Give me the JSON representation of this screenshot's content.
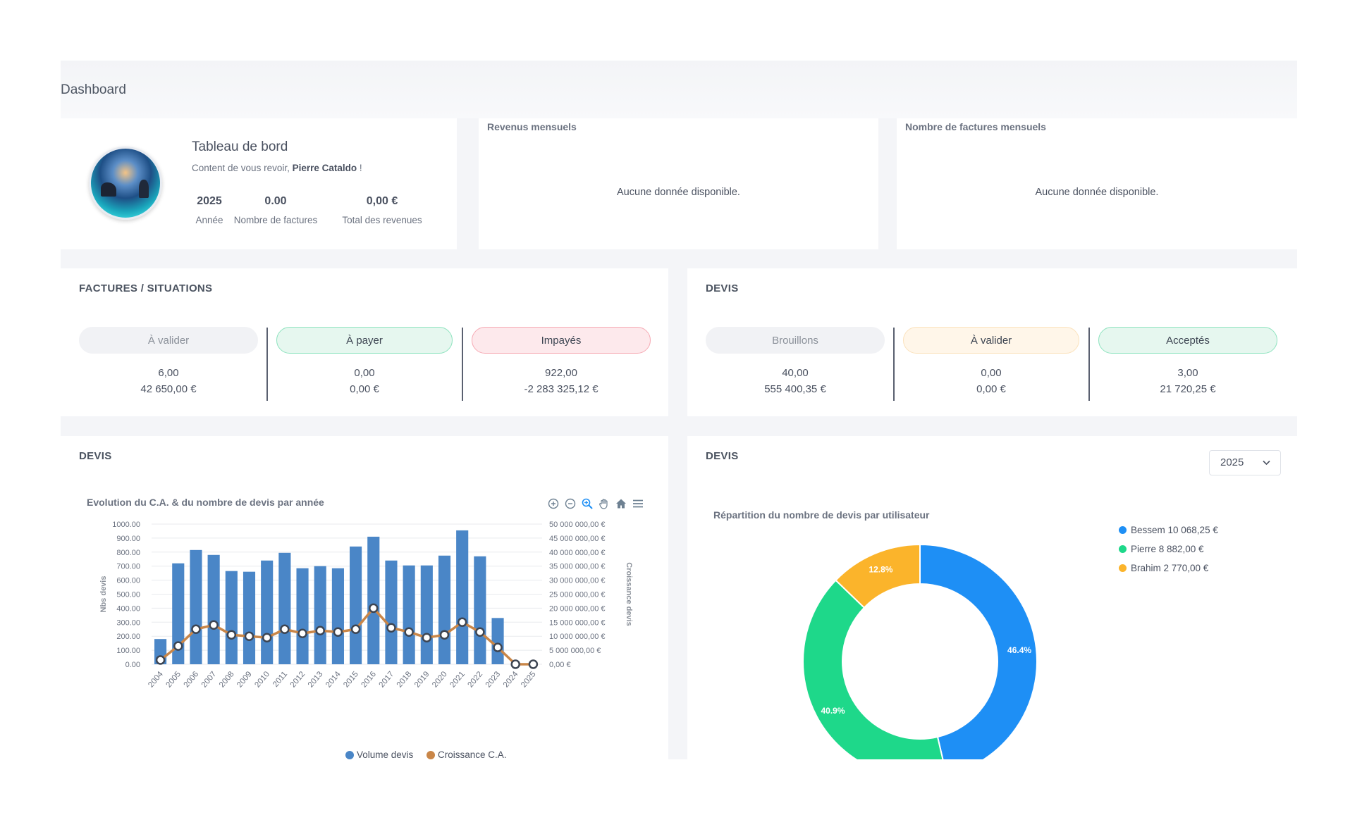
{
  "page": {
    "title": "Dashboard"
  },
  "profile": {
    "title": "Tableau de bord",
    "greeting_prefix": "Content de vous revoir,",
    "user_name": "Pierre Cataldo",
    "greeting_suffix": "!",
    "stats": [
      {
        "value": "2025",
        "label": "Année"
      },
      {
        "value": "0.00",
        "label": "Nombre de factures"
      },
      {
        "value": "0,00 €",
        "label": "Total des revenues"
      }
    ]
  },
  "revenue_card": {
    "title": "Revenus mensuels",
    "empty": "Aucune donnée disponible."
  },
  "invoices_count_card": {
    "title": "Nombre de factures mensuels",
    "empty": "Aucune donnée disponible."
  },
  "factures": {
    "title": "FACTURES / SITUATIONS",
    "columns": [
      {
        "label": "À valider",
        "count": "6,00",
        "amount": "42 650,00 €"
      },
      {
        "label": "À payer",
        "count": "0,00",
        "amount": "0,00 €"
      },
      {
        "label": "Impayés",
        "count": "922,00",
        "amount": "-2 283 325,12 €"
      }
    ]
  },
  "devis_status": {
    "title": "DEVIS",
    "columns": [
      {
        "label": "Brouillons",
        "count": "40,00",
        "amount": "555 400,35 €"
      },
      {
        "label": "À valider",
        "count": "0,00",
        "amount": "0,00 €"
      },
      {
        "label": "Acceptés",
        "count": "3,00",
        "amount": "21 720,25 €"
      }
    ]
  },
  "devis_chart_card": {
    "title": "DEVIS",
    "toolbar": [
      "zoom-in-icon",
      "zoom-out-icon",
      "selection-zoom-icon",
      "pan-hand-icon",
      "reset-home-icon",
      "menu-icon"
    ]
  },
  "devis_donut_card": {
    "title": "DEVIS",
    "year": "2025",
    "legend": [
      {
        "label": "Bessem 10 068,25 €",
        "color": "#1e8ff5"
      },
      {
        "label": "Pierre 8 882,00 €",
        "color": "#1ed88a"
      },
      {
        "label": "Brahim 2 770,00 €",
        "color": "#fbb42b"
      }
    ]
  },
  "chart_data": [
    {
      "type": "bar",
      "title": "Evolution du C.A. & du nombre de devis par année",
      "categories": [
        "2004",
        "2005",
        "2006",
        "2007",
        "2008",
        "2009",
        "2010",
        "2011",
        "2012",
        "2013",
        "2014",
        "2015",
        "2016",
        "2017",
        "2018",
        "2019",
        "2020",
        "2021",
        "2022",
        "2023",
        "2024",
        "2025"
      ],
      "series": [
        {
          "name": "Volume devis",
          "type": "bar",
          "axis": "left",
          "color": "#4a86c7",
          "values": [
            180,
            720,
            815,
            780,
            665,
            660,
            740,
            795,
            685,
            700,
            685,
            840,
            910,
            740,
            705,
            705,
            775,
            955,
            770,
            330,
            0,
            0
          ]
        },
        {
          "name": "Croissance C.A.",
          "type": "line",
          "axis": "right",
          "color": "#c98648",
          "values": [
            1500000,
            6500000,
            12500000,
            14000000,
            10500000,
            10000000,
            9500000,
            12500000,
            11000000,
            12000000,
            11500000,
            12500000,
            20000000,
            13000000,
            11500000,
            9500000,
            10500000,
            15000000,
            11500000,
            6000000,
            0,
            0
          ]
        }
      ],
      "ylabel_left": "Nbs devis",
      "ylabel_right": "Croissance devis",
      "ylim_left": [
        0,
        1000
      ],
      "ylim_right": [
        0,
        50000000
      ],
      "yticks_left": [
        "0.00",
        "100.00",
        "200.00",
        "300.00",
        "400.00",
        "500.00",
        "600.00",
        "700.00",
        "800.00",
        "900.00",
        "1000.00"
      ],
      "yticks_right": [
        "0,00 €",
        "5 000 000,00 €",
        "10 000 000,00 €",
        "15 000 000,00 €",
        "20 000 000,00 €",
        "25 000 000,00 €",
        "30 000 000,00 €",
        "35 000 000,00 €",
        "40 000 000,00 €",
        "45 000 000,00 €",
        "50 000 000,00 €"
      ],
      "legend": [
        "Volume devis",
        "Croissance C.A."
      ],
      "grid": true
    },
    {
      "type": "pie",
      "title": "Répartition du nombre de devis par utilisateur",
      "donut": true,
      "slices": [
        {
          "name": "Bessem",
          "value": 46.4,
          "label": "46.4%",
          "color": "#1e8ff5"
        },
        {
          "name": "Pierre",
          "value": 40.9,
          "label": "40.9%",
          "color": "#1ed88a"
        },
        {
          "name": "Brahim",
          "value": 12.8,
          "label": "12.8%",
          "color": "#fbb42b"
        }
      ]
    }
  ]
}
